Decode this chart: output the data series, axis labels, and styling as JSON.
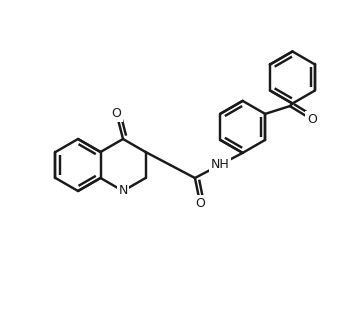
{
  "bg": "#ffffff",
  "lc": "#1a1a1a",
  "lw": 1.75,
  "bl": 26,
  "figsize": [
    3.57,
    3.33
  ],
  "dpi": 100,
  "xlim": [
    0,
    357
  ],
  "ylim": [
    0,
    333
  ]
}
